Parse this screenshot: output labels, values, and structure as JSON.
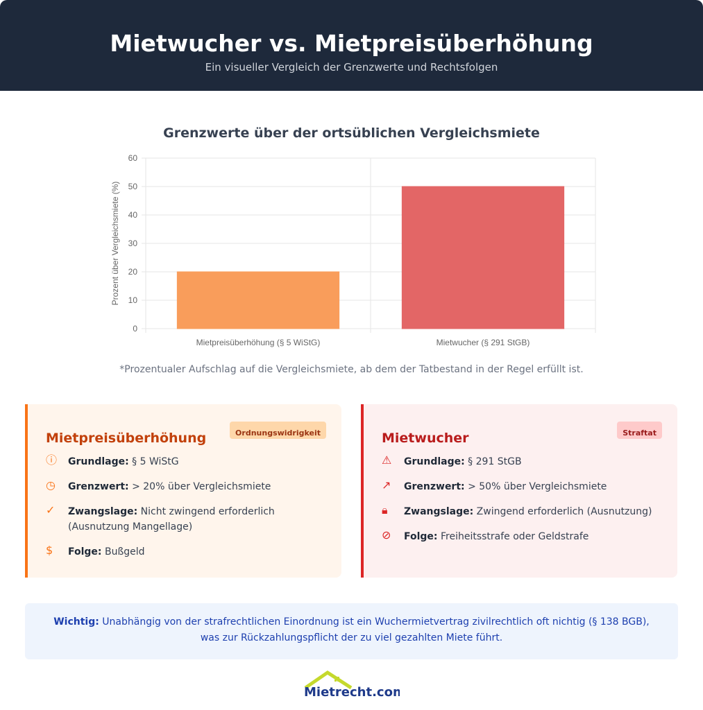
{
  "header": {
    "title": "Mietwucher vs. Mietpreisüberhöhung",
    "subtitle": "Ein visueller Vergleich der Grenzwerte und Rechtsfolgen"
  },
  "chart_data": {
    "type": "bar",
    "title": "Grenzwerte über der ortsüblichen Vergleichsmiete",
    "categories": [
      "Mietpreisüberhöhung (§ 5 WiStG)",
      "Mietwucher (§ 291 StGB)"
    ],
    "values": [
      20,
      50
    ],
    "colors": [
      "#f99d5b",
      "#e36666"
    ],
    "ylabel": "Prozent über Vergleichsmiete (%)",
    "xlabel": "",
    "ylim": [
      0,
      60
    ],
    "yticks": [
      "0",
      "10",
      "20",
      "30",
      "40",
      "50",
      "60"
    ],
    "grid": true
  },
  "note": "*Prozentualer Aufschlag auf die Vergleichsmiete, ab dem der Tatbestand in der Regel erfüllt ist.",
  "cards": [
    {
      "title": "Mietpreisüberhöhung",
      "badge": "Ordnungswidrigkeit",
      "items": [
        {
          "icon": "info-icon",
          "label": "Grundlage:",
          "value": "§ 5 WiStG"
        },
        {
          "icon": "clock-icon",
          "label": "Grenzwert:",
          "value": "> 20% über Vergleichsmiete"
        },
        {
          "icon": "check-circle-icon",
          "label": "Zwangslage:",
          "value": "Nicht zwingend erforderlich (Ausnutzung Mangellage)"
        },
        {
          "icon": "dollar-icon",
          "label": "Folge:",
          "value": "Bußgeld"
        }
      ]
    },
    {
      "title": "Mietwucher",
      "badge": "Straftat",
      "items": [
        {
          "icon": "warning-icon",
          "label": "Grundlage:",
          "value": "§ 291 StGB"
        },
        {
          "icon": "trend-up-icon",
          "label": "Grenzwert:",
          "value": "> 50% über Vergleichsmiete"
        },
        {
          "icon": "lock-icon",
          "label": "Zwangslage:",
          "value": "Zwingend erforderlich (Ausnutzung)"
        },
        {
          "icon": "ban-icon",
          "label": "Folge:",
          "value": "Freiheitsstrafe oder Geldstrafe"
        }
      ]
    }
  ],
  "info": {
    "label": "Wichtig:",
    "text": "Unabhängig von der strafrechtlichen Einordnung ist ein Wuchermietvertrag zivilrechtlich oft nichtig (§ 138 BGB), was zur Rückzahlungspflicht der zu viel gezahlten Miete führt."
  },
  "logo": {
    "text": "Mietrecht.com"
  }
}
